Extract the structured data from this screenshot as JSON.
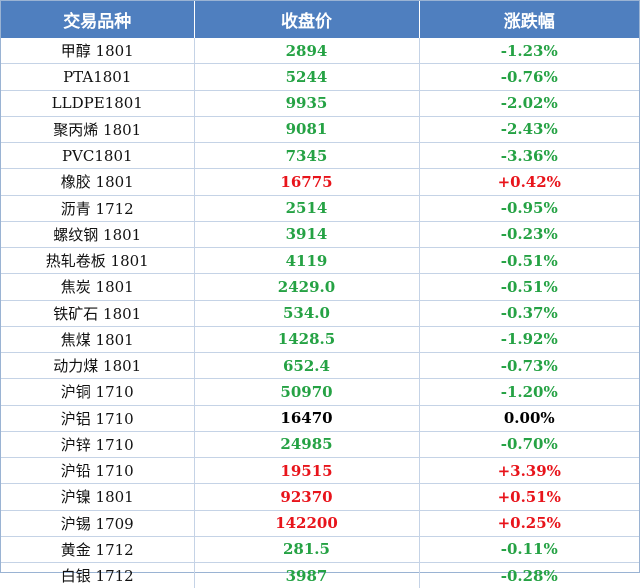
{
  "headers": [
    "交易品种",
    "收盘价",
    "涨跌幅"
  ],
  "colors": {
    "header_bg": "#4f7fbf",
    "down": "#25a244",
    "up": "#e8141b",
    "flat": "#000000"
  },
  "rows": [
    {
      "name": "甲醇 1801",
      "close": "2894",
      "change": "-1.23%",
      "dir": "down"
    },
    {
      "name": "PTA1801",
      "close": "5244",
      "change": "-0.76%",
      "dir": "down"
    },
    {
      "name": "LLDPE1801",
      "close": "9935",
      "change": "-2.02%",
      "dir": "down"
    },
    {
      "name": "聚丙烯 1801",
      "close": "9081",
      "change": "-2.43%",
      "dir": "down"
    },
    {
      "name": "PVC1801",
      "close": "7345",
      "change": "-3.36%",
      "dir": "down"
    },
    {
      "name": "橡胶 1801",
      "close": "16775",
      "change": "+0.42%",
      "dir": "up"
    },
    {
      "name": "沥青 1712",
      "close": "2514",
      "change": "-0.95%",
      "dir": "down"
    },
    {
      "name": "螺纹钢 1801",
      "close": "3914",
      "change": "-0.23%",
      "dir": "down"
    },
    {
      "name": "热轧卷板 1801",
      "close": "4119",
      "change": "-0.51%",
      "dir": "down"
    },
    {
      "name": "焦炭 1801",
      "close": "2429.0",
      "change": "-0.51%",
      "dir": "down"
    },
    {
      "name": "铁矿石 1801",
      "close": "534.0",
      "change": "-0.37%",
      "dir": "down"
    },
    {
      "name": "焦煤 1801",
      "close": "1428.5",
      "change": "-1.92%",
      "dir": "down"
    },
    {
      "name": "动力煤 1801",
      "close": "652.4",
      "change": "-0.73%",
      "dir": "down"
    },
    {
      "name": "沪铜 1710",
      "close": "50970",
      "change": "-1.20%",
      "dir": "down"
    },
    {
      "name": "沪铝 1710",
      "close": "16470",
      "change": "0.00%",
      "dir": "flat"
    },
    {
      "name": "沪锌 1710",
      "close": "24985",
      "change": "-0.70%",
      "dir": "down"
    },
    {
      "name": "沪铅 1710",
      "close": "19515",
      "change": "+3.39%",
      "dir": "up"
    },
    {
      "name": "沪镍 1801",
      "close": "92370",
      "change": "+0.51%",
      "dir": "up"
    },
    {
      "name": "沪锡 1709",
      "close": "142200",
      "change": "+0.25%",
      "dir": "up"
    },
    {
      "name": "黄金 1712",
      "close": "281.5",
      "change": "-0.11%",
      "dir": "down"
    },
    {
      "name": "白银 1712",
      "close": "3987",
      "change": "-0.28%",
      "dir": "down"
    }
  ]
}
